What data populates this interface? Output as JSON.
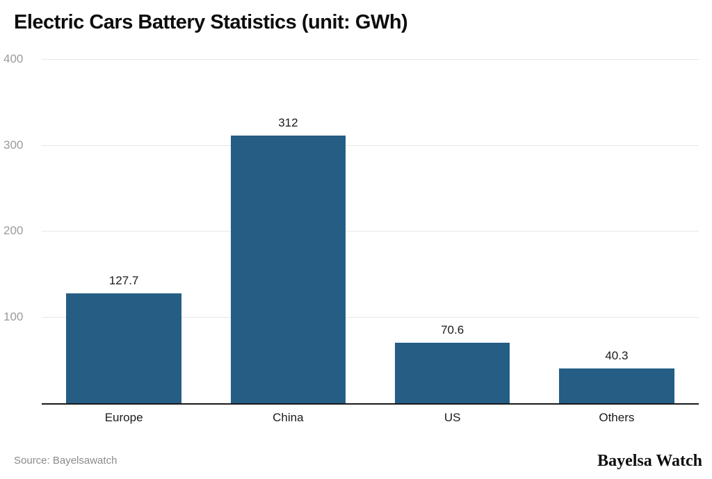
{
  "header": {
    "title": "Electric Cars Battery Statistics (unit: GWh)"
  },
  "footer": {
    "source": "Source: Bayelsawatch",
    "brand": "Bayelsa Watch"
  },
  "chart_data": {
    "type": "bar",
    "title": "Electric Cars Battery Statistics (unit: GWh)",
    "categories": [
      "Europe",
      "China",
      "US",
      "Others"
    ],
    "values": [
      127.7,
      312,
      70.6,
      40.3
    ],
    "value_labels": [
      "127.7",
      "312",
      "70.6",
      "40.3"
    ],
    "xlabel": "",
    "ylabel": "",
    "ylim": [
      0,
      400
    ],
    "yticks": [
      100,
      200,
      300,
      400
    ],
    "grid": true,
    "legend": "none",
    "bar_color": "#255d85",
    "tick_label_color": "#9b9b9b",
    "gridline_color": "#e7e7e7",
    "axis_line_color": "#1a1a1a"
  }
}
